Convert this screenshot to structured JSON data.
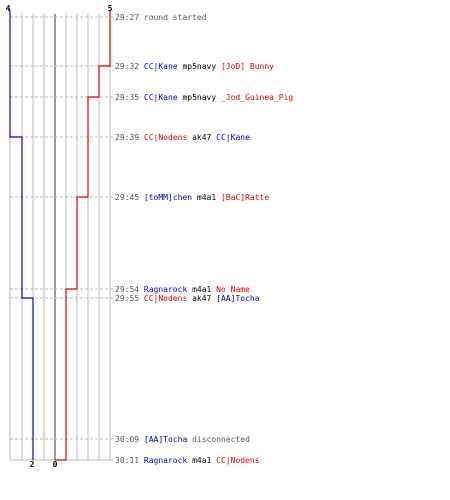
{
  "colors": {
    "team_blue": "#0000cc",
    "team_red": "#dd0000",
    "neutral": "#000000",
    "timestamp": "#555555",
    "grid": "#bbbbbb",
    "grid_center": "#777777"
  },
  "scores": {
    "blue_start": "4",
    "red_start": "5",
    "blue_end": "2",
    "red_end": "0"
  },
  "events": [
    {
      "time": "29:27",
      "kind": "info",
      "text": "round started"
    },
    {
      "time": "29:32",
      "kind": "kill",
      "killer": "CC|Kane",
      "killer_team": "blue",
      "weapon": "mp5navy",
      "victim": "[JoD] Bunny",
      "victim_team": "red"
    },
    {
      "time": "29:35",
      "kind": "kill",
      "killer": "CC|Kane",
      "killer_team": "blue",
      "weapon": "mp5navy",
      "victim": "_Jod_Guinea_Pig",
      "victim_team": "red"
    },
    {
      "time": "29:39",
      "kind": "kill",
      "killer": "CC|Nodens",
      "killer_team": "red",
      "weapon": "ak47",
      "victim": "CC|Kane",
      "victim_team": "blue"
    },
    {
      "time": "29:45",
      "kind": "kill",
      "killer": "[toMM]chen",
      "killer_team": "blue",
      "weapon": "m4a1",
      "victim": "[BaC]Ratte",
      "victim_team": "red"
    },
    {
      "time": "29:54",
      "kind": "kill",
      "killer": "Ragnarock",
      "killer_team": "blue",
      "weapon": "m4a1",
      "victim": "No Name",
      "victim_team": "red"
    },
    {
      "time": "29:55",
      "kind": "kill",
      "killer": "CC|Nodens",
      "killer_team": "red",
      "weapon": "ak47",
      "victim": "[AA]Tocha",
      "victim_team": "blue"
    },
    {
      "time": "30:09",
      "kind": "disconnect",
      "player": "[AA]Tocha",
      "player_team": "blue",
      "text": "disconnected"
    },
    {
      "time": "30:11",
      "kind": "kill",
      "killer": "Ragnarock",
      "killer_team": "blue",
      "weapon": "m4a1",
      "victim": "CC|Nodens",
      "victim_team": "red"
    }
  ]
}
